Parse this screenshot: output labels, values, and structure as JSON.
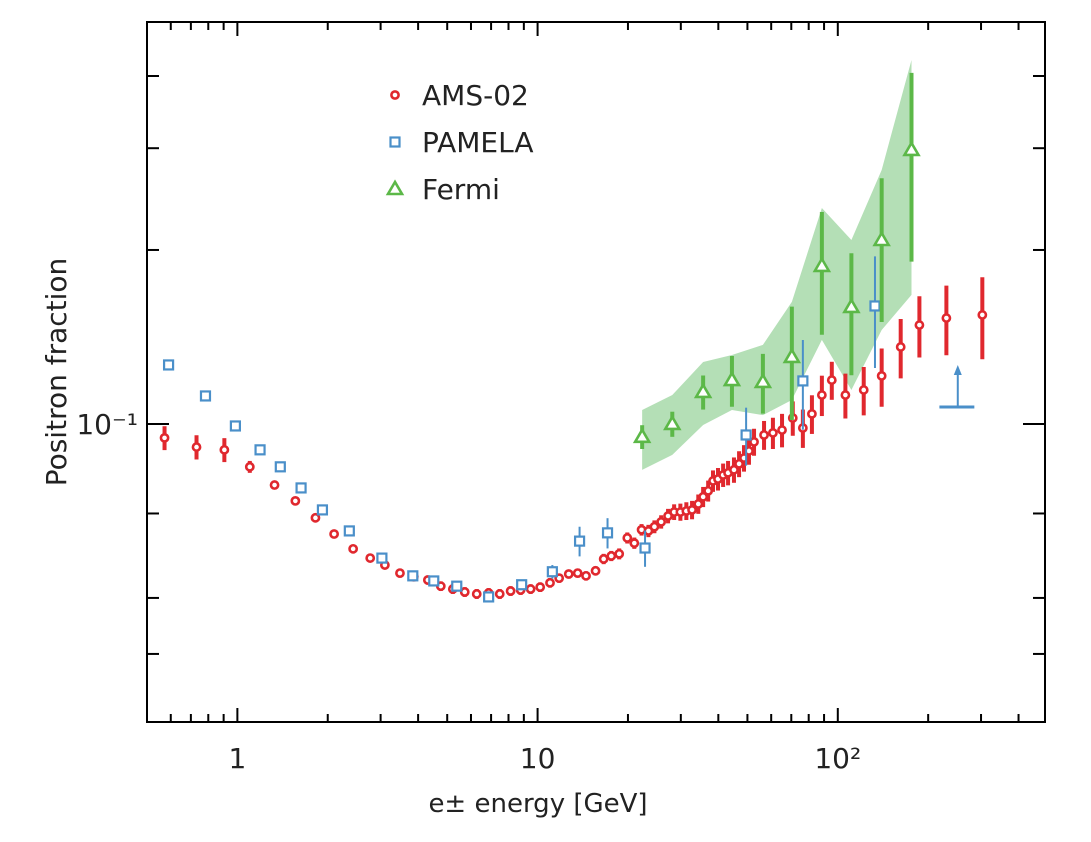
{
  "chart_data": {
    "type": "scatter",
    "xlabel": "e± energy [GeV]",
    "ylabel": "Positron fraction",
    "xscale": "log",
    "yscale": "log",
    "xlim": [
      0.5,
      490
    ],
    "ylim": [
      0.0305,
      0.496
    ],
    "xticks": [
      {
        "value": 0.6,
        "label": null
      },
      {
        "value": 0.7,
        "label": null
      },
      {
        "value": 0.8,
        "label": null
      },
      {
        "value": 0.9,
        "label": null
      },
      1,
      {
        "value": 2,
        "label": null
      },
      {
        "value": 3,
        "label": null
      },
      {
        "value": 4,
        "label": null
      },
      {
        "value": 5,
        "label": null
      },
      {
        "value": 6,
        "label": null
      },
      {
        "value": 7,
        "label": null
      },
      {
        "value": 8,
        "label": null
      },
      {
        "value": 9,
        "label": null
      },
      10,
      {
        "value": 20,
        "label": null
      },
      {
        "value": 30,
        "label": null
      },
      {
        "value": 40,
        "label": null
      },
      {
        "value": 50,
        "label": null
      },
      {
        "value": 60,
        "label": null
      },
      {
        "value": 70,
        "label": null
      },
      {
        "value": 80,
        "label": null
      },
      {
        "value": 90,
        "label": null
      },
      {
        "value": 100,
        "label": "10²"
      },
      {
        "value": 200,
        "label": null
      },
      {
        "value": 300,
        "label": null
      },
      {
        "value": 400,
        "label": null
      }
    ],
    "yticks": [
      {
        "value": 0.04,
        "label": null
      },
      {
        "value": 0.05,
        "label": null
      },
      {
        "value": 0.07,
        "label": null
      },
      {
        "value": 0.1,
        "label": "10⁻¹"
      },
      {
        "value": 0.2,
        "label": null
      },
      {
        "value": 0.3,
        "label": null
      },
      {
        "value": 0.4,
        "label": null
      }
    ],
    "legend": "upper left",
    "series": [
      {
        "name": "AMS-02",
        "marker": "circle",
        "color": "#e0282e",
        "x": [
          0.572,
          0.731,
          0.905,
          1.1,
          1.33,
          1.56,
          1.82,
          2.1,
          2.43,
          2.77,
          3.1,
          3.48,
          3.87,
          4.31,
          4.76,
          5.22,
          5.72,
          6.27,
          6.87,
          7.48,
          8.13,
          8.78,
          9.48,
          10.2,
          11.0,
          11.8,
          12.7,
          13.6,
          14.5,
          15.6,
          16.6,
          17.6,
          18.7,
          19.9,
          21.0,
          22.2,
          23.4,
          24.5,
          25.8,
          27.2,
          28.5,
          29.9,
          31.3,
          32.7,
          34.3,
          35.6,
          37.0,
          38.4,
          39.9,
          41.5,
          43.1,
          45.1,
          46.9,
          48.7,
          50.6,
          52.6,
          56.8,
          60.8,
          65.2,
          70.8,
          76.5,
          82.0,
          88.5,
          95.5,
          106,
          122,
          140,
          162,
          187,
          230,
          303
        ],
        "values": [
          0.0946,
          0.0912,
          0.0902,
          0.0843,
          0.0784,
          0.0736,
          0.0688,
          0.0645,
          0.0608,
          0.0586,
          0.057,
          0.0552,
          0.0544,
          0.0537,
          0.0524,
          0.0518,
          0.0512,
          0.0508,
          0.051,
          0.0508,
          0.0514,
          0.0516,
          0.0518,
          0.0522,
          0.0531,
          0.0541,
          0.055,
          0.0552,
          0.0546,
          0.0557,
          0.0584,
          0.0591,
          0.0596,
          0.0635,
          0.0622,
          0.0656,
          0.0653,
          0.0664,
          0.0677,
          0.0693,
          0.0704,
          0.0704,
          0.0707,
          0.071,
          0.0727,
          0.0748,
          0.0766,
          0.0797,
          0.0803,
          0.0816,
          0.0823,
          0.0833,
          0.0853,
          0.0873,
          0.0898,
          0.0931,
          0.0957,
          0.0965,
          0.0976,
          0.1024,
          0.0984,
          0.1041,
          0.1122,
          0.1191,
          0.1122,
          0.1145,
          0.1211,
          0.1359,
          0.1483,
          0.1525,
          0.1544
        ],
        "errors": [
          0.0045,
          0.0044,
          0.0043,
          0.002,
          0.001,
          0.001,
          0.001,
          0.001,
          0.001,
          0.001,
          0.001,
          0.001,
          0.001,
          0.001,
          0.001,
          0.001,
          0.001,
          0.001,
          0.001,
          0.001,
          0.001,
          0.001,
          0.001,
          0.001,
          0.001,
          0.001,
          0.001,
          0.001,
          0.001,
          0.001,
          0.0012,
          0.0012,
          0.0013,
          0.0014,
          0.0014,
          0.0015,
          0.0016,
          0.0017,
          0.0018,
          0.002,
          0.0022,
          0.0024,
          0.0025,
          0.0026,
          0.0028,
          0.003,
          0.0032,
          0.0034,
          0.0036,
          0.0038,
          0.004,
          0.0042,
          0.0044,
          0.0046,
          0.0048,
          0.005,
          0.0055,
          0.006,
          0.0065,
          0.007,
          0.0075,
          0.008,
          0.009,
          0.009,
          0.01,
          0.011,
          0.014,
          0.016,
          0.018,
          0.021,
          0.025
        ]
      },
      {
        "name": "PAMELA",
        "marker": "square",
        "color": "#4a8fc9",
        "x": [
          0.59,
          0.783,
          0.985,
          1.19,
          1.39,
          1.63,
          1.92,
          2.36,
          3.03,
          3.84,
          4.51,
          5.38,
          6.87,
          8.85,
          11.2,
          13.8,
          17.1,
          22.8,
          49.5,
          76.5,
          133
        ],
        "values": [
          0.1265,
          0.1118,
          0.0992,
          0.0902,
          0.0843,
          0.0775,
          0.071,
          0.0653,
          0.0586,
          0.0546,
          0.0535,
          0.0524,
          0.0502,
          0.0527,
          0.0555,
          0.0627,
          0.0648,
          0.061,
          0.0957,
          0.1187,
          0.16
        ],
        "errors": [
          0.001,
          0.001,
          0.001,
          0.001,
          0.001,
          0.001,
          0.001,
          0.001,
          0.001,
          0.001,
          0.001,
          0.001,
          0.001,
          0.001,
          0.0015,
          0.0037,
          0.0039,
          0.0044,
          0.011,
          0.021,
          0.035
        ],
        "limit_x": [
          218,
          251,
          285
        ],
        "limit_value": 0.107
      },
      {
        "name": "Fermi",
        "marker": "triangle",
        "color": "#5cb848",
        "band_color": "#b4dfb6",
        "x": [
          22.3,
          28.1,
          35.6,
          44.4,
          56.3,
          70.3,
          88.5,
          111,
          140,
          176
        ],
        "values": [
          0.095,
          0.1,
          0.1136,
          0.1191,
          0.1182,
          0.1306,
          0.1877,
          0.1594,
          0.2081,
          0.2979
        ],
        "errors": [
          0.0045,
          0.005,
          0.0077,
          0.012,
          0.014,
          0.029,
          0.045,
          0.038,
          0.058,
          0.107
        ],
        "band_high": [
          0.1057,
          0.1122,
          0.128,
          0.1316,
          0.137,
          0.1626,
          0.2364,
          0.2081,
          0.2751,
          0.4264
        ],
        "band_low": [
          0.0833,
          0.0884,
          0.0996,
          0.1057,
          0.1036,
          0.11,
          0.1398,
          0.1145,
          0.1454,
          0.1672
        ]
      }
    ]
  }
}
